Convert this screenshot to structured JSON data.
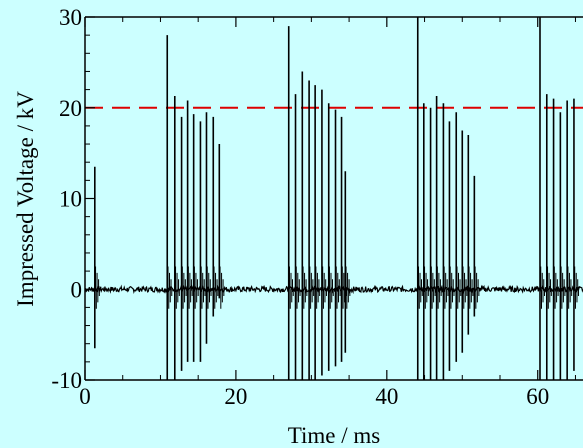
{
  "chart_data": {
    "type": "line",
    "xlabel": "Time / ms",
    "ylabel": "Impressed Voltage / kV",
    "xlim": [
      0,
      66
    ],
    "ylim": [
      -10,
      30
    ],
    "x_ticks": [
      {
        "value": 0,
        "label": "0"
      },
      {
        "value": 20,
        "label": "20"
      },
      {
        "value": 40,
        "label": "40"
      },
      {
        "value": 60,
        "label": "60"
      }
    ],
    "y_ticks": [
      {
        "value": -10,
        "label": "-10"
      },
      {
        "value": 0,
        "label": "0"
      },
      {
        "value": 10,
        "label": "10"
      },
      {
        "value": 20,
        "label": "20"
      },
      {
        "value": 30,
        "label": "30"
      }
    ],
    "grid": false,
    "reference_line": {
      "y": 20,
      "style": "dashed",
      "color": "#dd0000"
    },
    "series": [
      {
        "color": "#000000",
        "baseline": 0,
        "noise_amplitude": 0.6,
        "spikes": [
          {
            "t": 1.3,
            "peak": 13.5,
            "trough": -6.5
          },
          {
            "t": 10.9,
            "peak": 28,
            "trough": -10
          },
          {
            "t": 11.9,
            "peak": 21.3,
            "trough": -10
          },
          {
            "t": 12.8,
            "peak": 19,
            "trough": -9
          },
          {
            "t": 13.6,
            "peak": 20.8,
            "trough": -8
          },
          {
            "t": 14.4,
            "peak": 19.3,
            "trough": -8
          },
          {
            "t": 15.3,
            "peak": 18.5,
            "trough": -8
          },
          {
            "t": 16.1,
            "peak": 19.5,
            "trough": -6
          },
          {
            "t": 17.0,
            "peak": 19,
            "trough": -3
          },
          {
            "t": 17.8,
            "peak": 16,
            "trough": -1
          },
          {
            "t": 27.0,
            "peak": 29,
            "trough": -10
          },
          {
            "t": 27.9,
            "peak": 21.5,
            "trough": -10
          },
          {
            "t": 28.8,
            "peak": 24,
            "trough": -10
          },
          {
            "t": 29.7,
            "peak": 23,
            "trough": -10
          },
          {
            "t": 30.5,
            "peak": 22.5,
            "trough": -10
          },
          {
            "t": 31.4,
            "peak": 22,
            "trough": -9.5
          },
          {
            "t": 32.3,
            "peak": 20.5,
            "trough": -9
          },
          {
            "t": 33.2,
            "peak": 19.8,
            "trough": -8.5
          },
          {
            "t": 34.0,
            "peak": 19,
            "trough": -8
          },
          {
            "t": 34.5,
            "peak": 13,
            "trough": -7
          },
          {
            "t": 44.1,
            "peak": 30,
            "trough": -10
          },
          {
            "t": 44.9,
            "peak": 20.5,
            "trough": -10
          },
          {
            "t": 45.8,
            "peak": 20,
            "trough": -10
          },
          {
            "t": 46.6,
            "peak": 21.3,
            "trough": -10
          },
          {
            "t": 47.5,
            "peak": 20.5,
            "trough": -10
          },
          {
            "t": 48.3,
            "peak": 18.5,
            "trough": -9
          },
          {
            "t": 49.2,
            "peak": 19.5,
            "trough": -8
          },
          {
            "t": 50.0,
            "peak": 17.5,
            "trough": -7
          },
          {
            "t": 50.8,
            "peak": 17,
            "trough": -5
          },
          {
            "t": 51.6,
            "peak": 12.5,
            "trough": -3
          },
          {
            "t": 60.3,
            "peak": 30,
            "trough": -10
          },
          {
            "t": 61.2,
            "peak": 21.5,
            "trough": -10
          },
          {
            "t": 62.1,
            "peak": 21,
            "trough": -10
          },
          {
            "t": 63.0,
            "peak": 19.5,
            "trough": -10
          },
          {
            "t": 63.9,
            "peak": 20.8,
            "trough": -10
          },
          {
            "t": 64.8,
            "peak": 21,
            "trough": -9
          }
        ]
      }
    ]
  }
}
